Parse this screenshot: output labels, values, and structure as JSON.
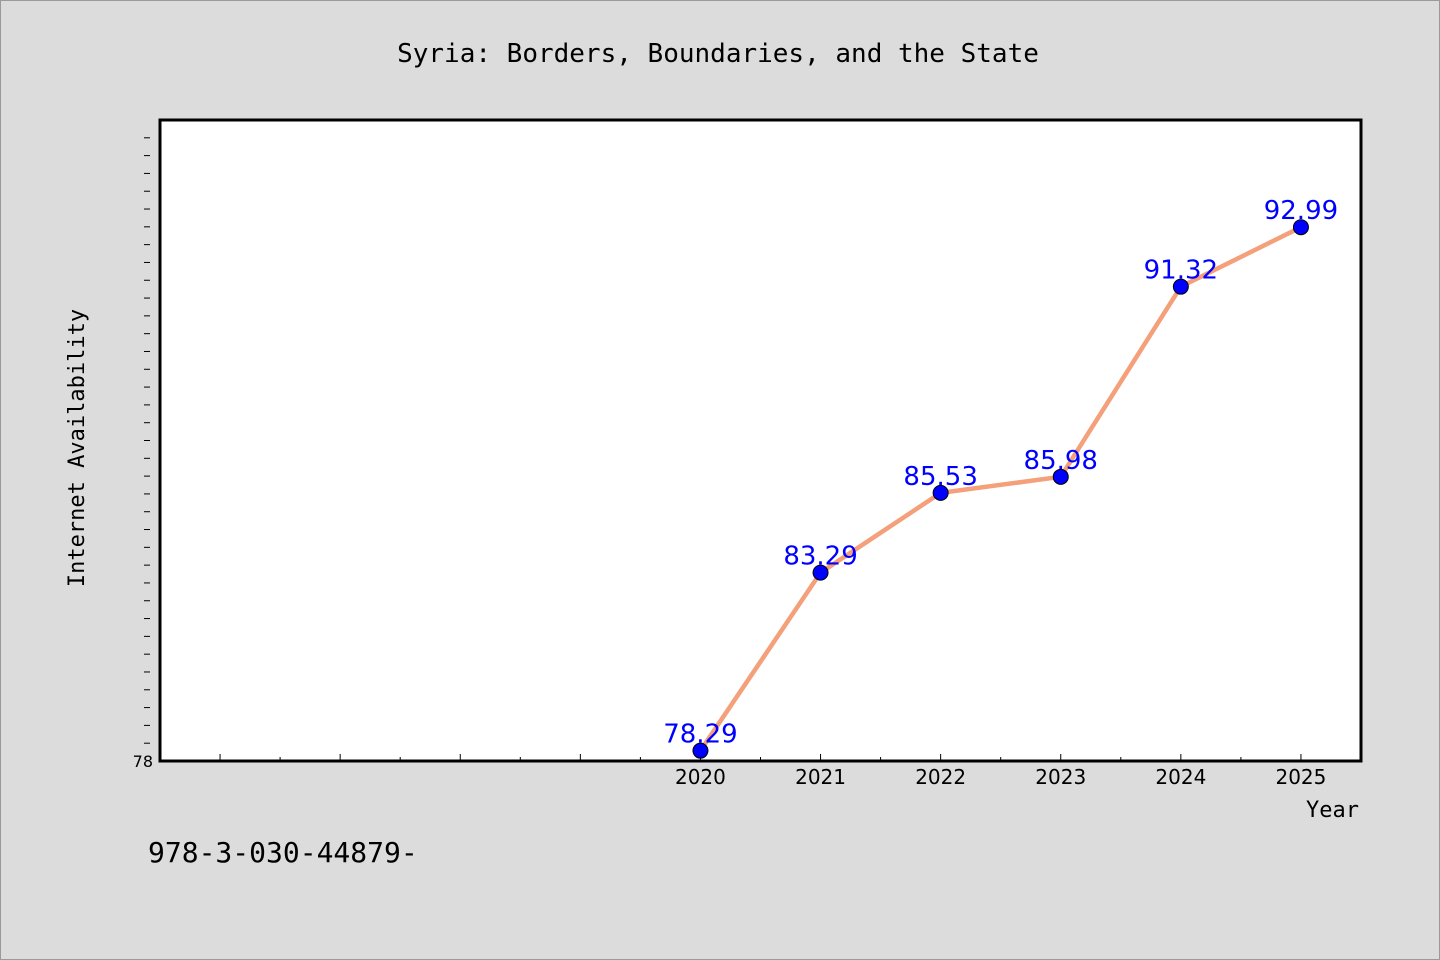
{
  "chart_data": {
    "type": "line",
    "title": "Syria: Borders, Boundaries, and the State",
    "xlabel": "Year",
    "ylabel": "Internet Availability",
    "x": [
      2020,
      2021,
      2022,
      2023,
      2024,
      2025
    ],
    "x_tick_labels": [
      "2020",
      "2021",
      "2022",
      "2023",
      "2024",
      "2025"
    ],
    "xlim": [
      2015.5,
      2025.5
    ],
    "ylim": [
      78,
      96
    ],
    "y_tick_labels": [
      "78"
    ],
    "grid": false,
    "series": [
      {
        "values": [
          78.29,
          83.29,
          85.53,
          85.98,
          91.32,
          92.99
        ],
        "data_labels": [
          "78.29",
          "83.29",
          "85.53",
          "85.98",
          "91.32",
          "92.99"
        ],
        "line_color": "#f4a07a",
        "marker_color": "#0000ff"
      }
    ]
  },
  "footnote": "978-3-030-44879-"
}
